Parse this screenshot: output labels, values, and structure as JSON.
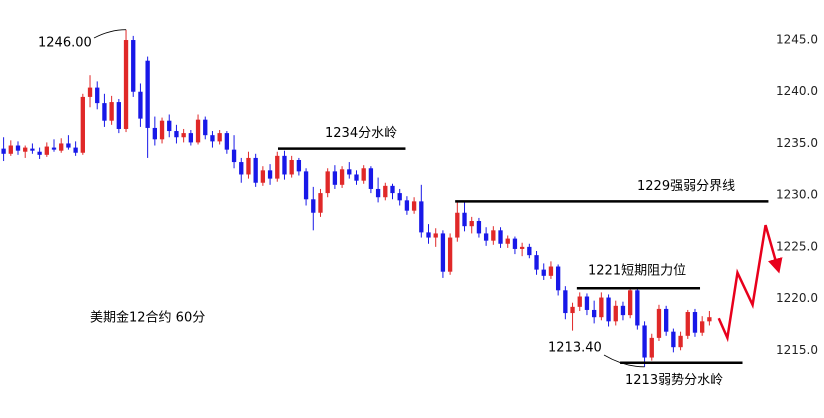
{
  "chart_data": {
    "type": "candlestick",
    "title": "美期金12合约 60分",
    "up_color": "#e02828",
    "down_color": "#1818e8",
    "xlim": [
      -0.5,
      108.5
    ],
    "ylim": [
      1210,
      1248
    ],
    "yticks": [
      {
        "value": 1215,
        "label": "1215.0"
      },
      {
        "value": 1220,
        "label": "1220.0"
      },
      {
        "value": 1225,
        "label": "1225.0"
      },
      {
        "value": 1230,
        "label": "1230.0"
      },
      {
        "value": 1235,
        "label": "1235.0"
      },
      {
        "value": 1240,
        "label": "1240.0"
      },
      {
        "value": 1245,
        "label": "1245.0"
      }
    ],
    "open": [
      1234.5,
      1234.0,
      1234.8,
      1234.2,
      1234.5,
      1234.2,
      1233.9,
      1234.6,
      1234.3,
      1235.0,
      1234.6,
      1234.1,
      1239.5,
      1240.4,
      1238.9,
      1237.2,
      1239.0,
      1236.4,
      1245.0,
      1240.0,
      1243.0,
      1236.5,
      1235.4,
      1237.2,
      1236.2,
      1235.6,
      1236.0,
      1235.1,
      1237.3,
      1235.8,
      1235.2,
      1236.0,
      1234.4,
      1233.2,
      1232.0,
      1233.6,
      1231.2,
      1232.4,
      1231.6,
      1233.8,
      1232.0,
      1233.4,
      1232.3,
      1229.6,
      1228.3,
      1230.2,
      1232.3,
      1231.0,
      1232.5,
      1232.0,
      1231.4,
      1232.6,
      1230.6,
      1229.8,
      1230.9,
      1230.2,
      1229.5,
      1228.5,
      1229.4,
      1226.4,
      1225.9,
      1226.3,
      1222.6,
      1225.9,
      1228.3,
      1227.0,
      1227.5,
      1226.3,
      1225.6,
      1226.6,
      1225.3,
      1225.8,
      1224.8,
      1225.0,
      1224.2,
      1222.8,
      1222.2,
      1223.1,
      1220.8,
      1218.6,
      1219.2,
      1220.2,
      1218.9,
      1218.2,
      1220.1,
      1217.8,
      1219.3,
      1218.4,
      1220.8,
      1217.4,
      1214.3,
      1216.2,
      1219.0,
      1216.8,
      1215.3,
      1216.4,
      1218.7,
      1216.7,
      1217.8
    ],
    "high": [
      1235.6,
      1235.3,
      1235.2,
      1234.8,
      1235.0,
      1234.6,
      1235.1,
      1235.4,
      1235.5,
      1235.8,
      1235.2,
      1239.8,
      1241.6,
      1241.0,
      1239.8,
      1239.6,
      1239.3,
      1246.0,
      1245.4,
      1240.8,
      1243.4,
      1237.6,
      1237.5,
      1237.8,
      1236.8,
      1236.4,
      1236.3,
      1237.8,
      1237.6,
      1236.2,
      1236.3,
      1236.2,
      1235.8,
      1233.6,
      1234.2,
      1234.0,
      1232.8,
      1233.0,
      1234.2,
      1234.3,
      1233.8,
      1233.6,
      1232.6,
      1230.8,
      1230.6,
      1232.6,
      1232.9,
      1232.8,
      1233.2,
      1232.4,
      1232.9,
      1232.8,
      1231.7,
      1231.2,
      1231.1,
      1230.6,
      1229.9,
      1229.8,
      1231.0,
      1227.2,
      1226.8,
      1226.6,
      1226.3,
      1229.4,
      1229.4,
      1227.9,
      1227.8,
      1226.9,
      1227.0,
      1226.9,
      1226.1,
      1226.0,
      1225.4,
      1225.3,
      1224.6,
      1223.4,
      1223.6,
      1223.3,
      1221.2,
      1219.6,
      1220.6,
      1220.5,
      1219.8,
      1220.6,
      1220.4,
      1219.8,
      1219.7,
      1221.0,
      1221.0,
      1217.8,
      1216.6,
      1219.4,
      1219.3,
      1217.1,
      1216.8,
      1218.9,
      1219.0,
      1218.3,
      1218.8
    ],
    "low": [
      1233.3,
      1233.8,
      1233.9,
      1233.6,
      1234.0,
      1233.5,
      1233.7,
      1234.2,
      1234.1,
      1234.4,
      1233.8,
      1233.9,
      1238.5,
      1238.3,
      1236.6,
      1236.8,
      1236.0,
      1236.1,
      1239.5,
      1236.6,
      1233.6,
      1234.8,
      1235.0,
      1235.6,
      1235.0,
      1235.1,
      1234.8,
      1234.9,
      1235.4,
      1234.6,
      1234.9,
      1234.0,
      1232.6,
      1231.2,
      1231.6,
      1230.8,
      1230.9,
      1231.0,
      1231.3,
      1231.5,
      1231.7,
      1231.9,
      1229.0,
      1226.6,
      1227.9,
      1229.8,
      1230.6,
      1230.7,
      1231.6,
      1231.0,
      1231.1,
      1230.2,
      1229.3,
      1229.5,
      1229.6,
      1229.0,
      1228.1,
      1228.2,
      1225.9,
      1225.3,
      1225.0,
      1222.0,
      1222.3,
      1225.5,
      1226.5,
      1226.3,
      1225.9,
      1225.1,
      1225.2,
      1224.9,
      1224.9,
      1224.3,
      1224.1,
      1223.9,
      1222.3,
      1221.8,
      1221.9,
      1220.3,
      1218.0,
      1216.9,
      1218.8,
      1218.4,
      1217.6,
      1217.9,
      1217.3,
      1217.4,
      1217.9,
      1218.1,
      1217.0,
      1213.4,
      1214.0,
      1215.9,
      1216.4,
      1214.8,
      1215.0,
      1216.1,
      1216.3,
      1216.4,
      1217.4
    ],
    "close": [
      1234.0,
      1234.8,
      1234.3,
      1234.6,
      1234.3,
      1233.9,
      1234.7,
      1234.4,
      1235.0,
      1234.6,
      1234.1,
      1239.5,
      1240.4,
      1238.9,
      1237.2,
      1239.0,
      1236.4,
      1245.0,
      1240.0,
      1237.4,
      1236.5,
      1235.4,
      1237.2,
      1236.2,
      1235.6,
      1236.0,
      1235.1,
      1237.3,
      1235.8,
      1235.2,
      1236.0,
      1234.4,
      1233.2,
      1232.0,
      1233.6,
      1231.2,
      1232.4,
      1231.6,
      1233.8,
      1232.0,
      1233.4,
      1232.3,
      1229.6,
      1228.3,
      1230.2,
      1232.3,
      1231.0,
      1232.5,
      1232.0,
      1231.4,
      1232.6,
      1230.6,
      1229.8,
      1230.9,
      1230.2,
      1229.5,
      1228.5,
      1229.4,
      1226.4,
      1225.9,
      1226.3,
      1222.6,
      1225.9,
      1228.3,
      1227.0,
      1227.5,
      1226.3,
      1225.6,
      1226.6,
      1225.3,
      1225.8,
      1224.8,
      1225.0,
      1224.2,
      1222.8,
      1222.2,
      1223.1,
      1220.8,
      1218.6,
      1219.2,
      1220.2,
      1218.9,
      1218.2,
      1220.1,
      1217.8,
      1219.3,
      1218.4,
      1220.8,
      1217.4,
      1214.3,
      1216.2,
      1219.0,
      1216.8,
      1215.3,
      1216.4,
      1218.7,
      1216.7,
      1217.8,
      1218.2
    ],
    "levels": [
      {
        "label": "1234分水岭",
        "value": 1234.5,
        "x": [
          38.1,
          55.8
        ]
      },
      {
        "label": "1229强弱分界线",
        "value": 1229.4,
        "x": [
          62.7,
          106.2
        ]
      },
      {
        "label": "1221短期阻力位",
        "value": 1221.0,
        "x": [
          79.6,
          96.7
        ]
      },
      {
        "label": "1213弱势分水岭",
        "value": 1213.8,
        "x": [
          85.6,
          102.6
        ]
      }
    ],
    "price_notes": [
      {
        "label": "1246.00",
        "index": 17
      },
      {
        "label": "1213.40",
        "index": 89
      }
    ],
    "forecast": {
      "color": "#e8001c",
      "x": [
        99.3,
        100.5,
        101.9,
        104.0,
        105.8,
        107.6
      ],
      "values": [
        1218.1,
        1216.2,
        1222.5,
        1219.4,
        1227.1,
        1222.7
      ]
    }
  }
}
